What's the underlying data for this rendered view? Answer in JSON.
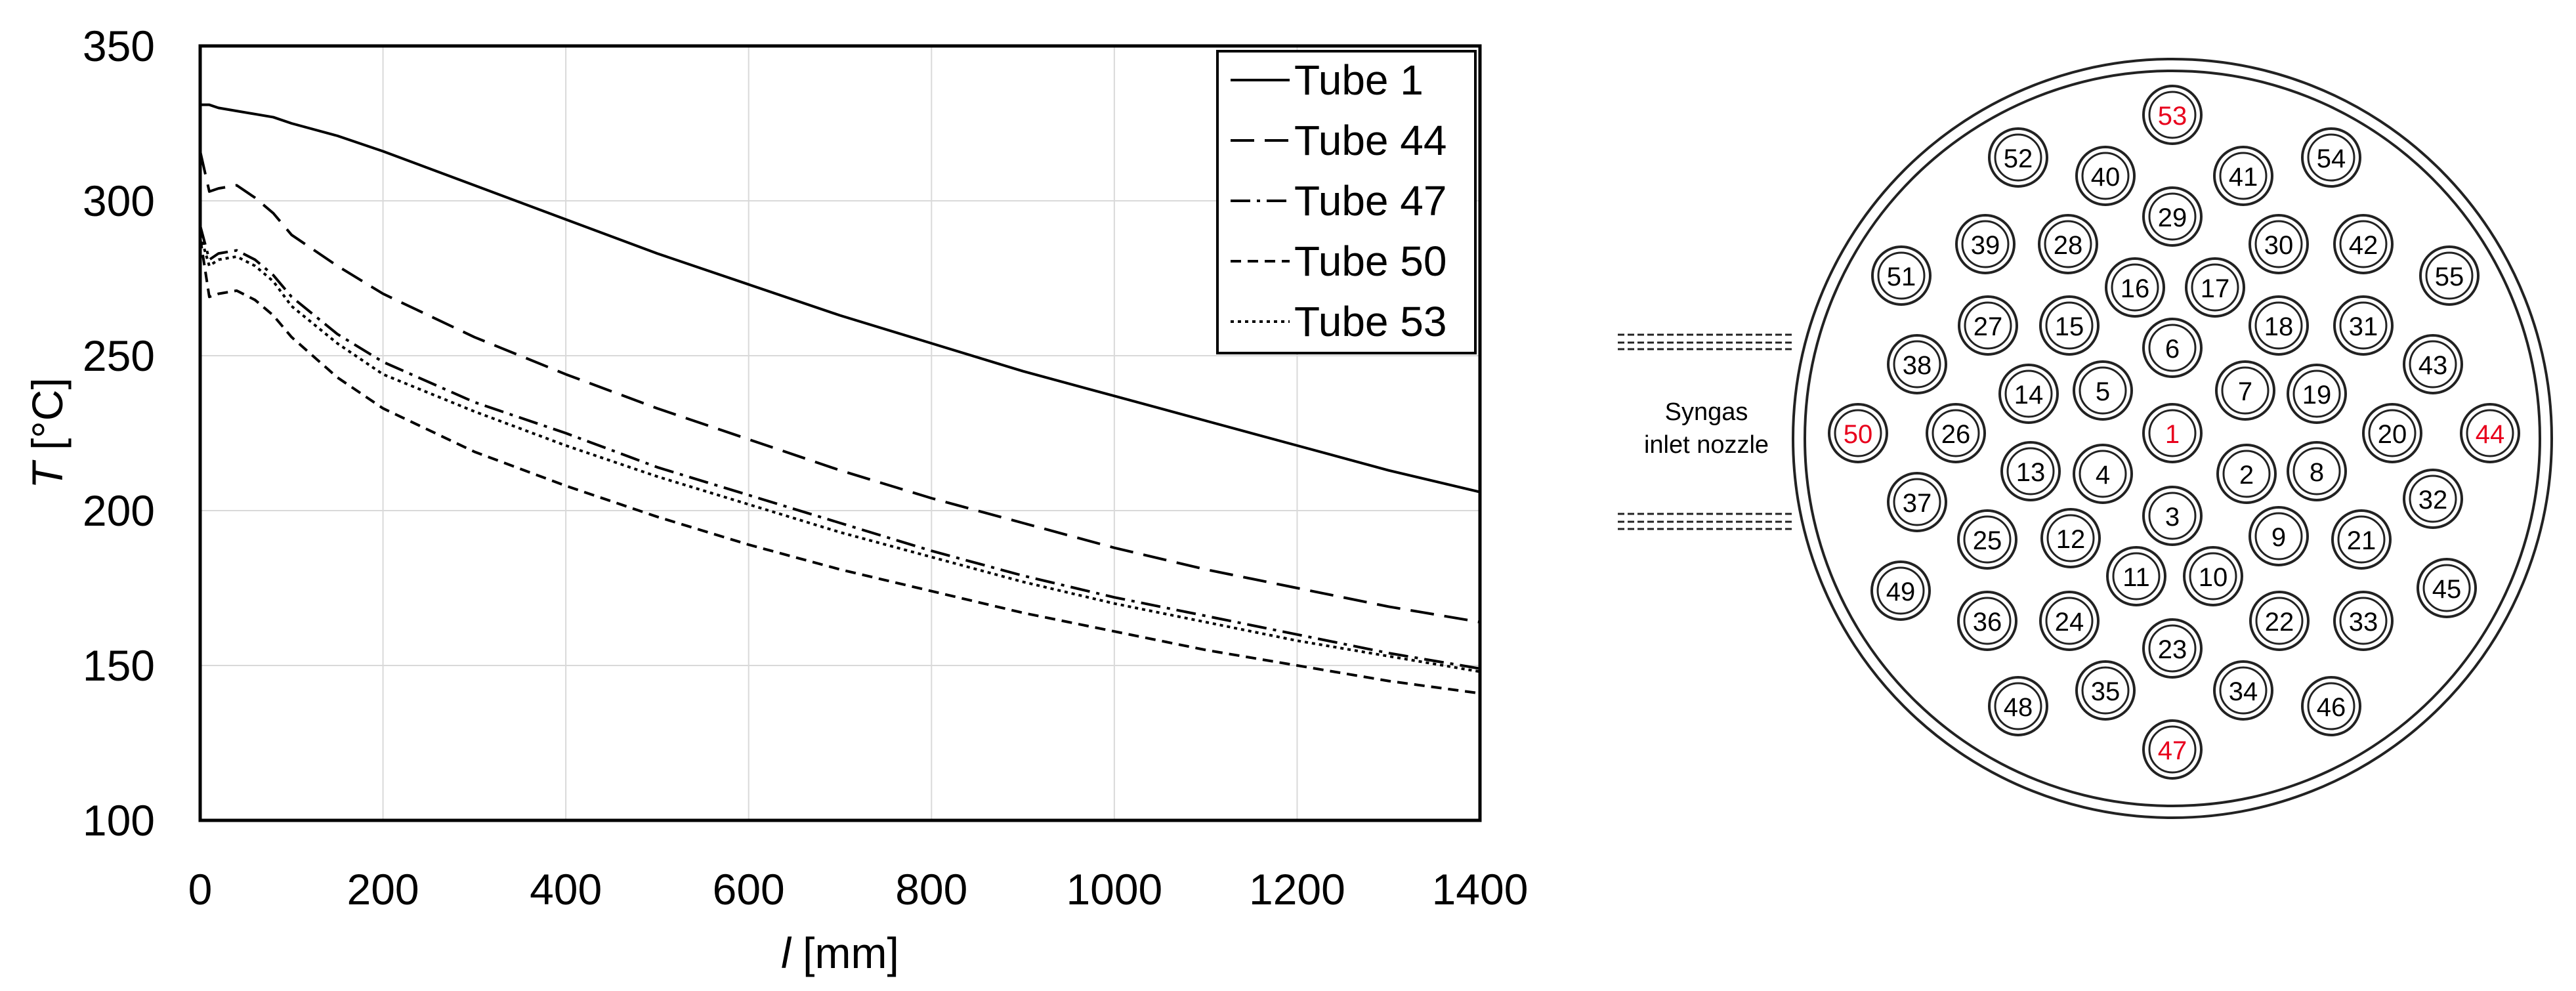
{
  "chart_data": {
    "type": "line",
    "title": "",
    "xlabel_var": "l",
    "xlabel_unit": " [mm]",
    "ylabel_var": "T",
    "ylabel_unit": " [°C]",
    "xlim": [
      0,
      1400
    ],
    "ylim": [
      100,
      350
    ],
    "xticks": [
      0,
      200,
      400,
      600,
      800,
      1000,
      1200,
      1400
    ],
    "yticks": [
      100,
      150,
      200,
      250,
      300,
      350
    ],
    "grid": true,
    "legend_position": "top-right",
    "x": [
      0,
      10,
      20,
      40,
      60,
      80,
      100,
      150,
      200,
      300,
      400,
      500,
      600,
      700,
      800,
      900,
      1000,
      1100,
      1200,
      1300,
      1400
    ],
    "series": [
      {
        "name": "Tube 1",
        "dash": "solid",
        "values": [
          331,
          331,
          330,
          329,
          328,
          327,
          325,
          321,
          316,
          305,
          294,
          283,
          273,
          263,
          254,
          245,
          237,
          229,
          221,
          213,
          206
        ]
      },
      {
        "name": "Tube 44",
        "dash": "long-dash",
        "values": [
          316,
          303,
          304,
          305,
          301,
          296,
          289,
          279,
          270,
          256,
          244,
          233,
          223,
          213,
          204,
          196,
          188,
          181,
          175,
          169,
          164
        ]
      },
      {
        "name": "Tube 47",
        "dash": "dash-dot",
        "values": [
          292,
          281,
          283,
          284,
          281,
          276,
          269,
          257,
          248,
          235,
          225,
          214,
          205,
          196,
          187,
          179,
          172,
          166,
          160,
          154,
          149
        ]
      },
      {
        "name": "Tube 50",
        "dash": "short-dash",
        "values": [
          288,
          269,
          270,
          271,
          268,
          263,
          256,
          243,
          233,
          219,
          208,
          198,
          189,
          181,
          174,
          167,
          161,
          155,
          150,
          145,
          141
        ]
      },
      {
        "name": "Tube 53",
        "dash": "dotted",
        "values": [
          289,
          279,
          281,
          282,
          279,
          274,
          266,
          254,
          244,
          232,
          221,
          211,
          202,
          193,
          185,
          177,
          170,
          164,
          158,
          153,
          148
        ]
      }
    ]
  },
  "diagram": {
    "nozzle_label_line1": "Syngas",
    "nozzle_label_line2": "inlet nozzle",
    "highlight_color": "#e8001c",
    "tubes": [
      {
        "n": "53",
        "hl": true
      },
      {
        "n": "52"
      },
      {
        "n": "40"
      },
      {
        "n": "41"
      },
      {
        "n": "54"
      },
      {
        "n": "29"
      },
      {
        "n": "39"
      },
      {
        "n": "28"
      },
      {
        "n": "30"
      },
      {
        "n": "42"
      },
      {
        "n": "51"
      },
      {
        "n": "16"
      },
      {
        "n": "17"
      },
      {
        "n": "55"
      },
      {
        "n": "27"
      },
      {
        "n": "15"
      },
      {
        "n": "18"
      },
      {
        "n": "31"
      },
      {
        "n": "6"
      },
      {
        "n": "38"
      },
      {
        "n": "43"
      },
      {
        "n": "14"
      },
      {
        "n": "5"
      },
      {
        "n": "7"
      },
      {
        "n": "19"
      },
      {
        "n": "50",
        "hl": true
      },
      {
        "n": "26"
      },
      {
        "n": "1",
        "hl": true
      },
      {
        "n": "20"
      },
      {
        "n": "44",
        "hl": true
      },
      {
        "n": "13"
      },
      {
        "n": "4"
      },
      {
        "n": "2"
      },
      {
        "n": "8"
      },
      {
        "n": "37"
      },
      {
        "n": "32"
      },
      {
        "n": "3"
      },
      {
        "n": "25"
      },
      {
        "n": "12"
      },
      {
        "n": "9"
      },
      {
        "n": "21"
      },
      {
        "n": "11"
      },
      {
        "n": "10"
      },
      {
        "n": "49"
      },
      {
        "n": "45"
      },
      {
        "n": "36"
      },
      {
        "n": "24"
      },
      {
        "n": "22"
      },
      {
        "n": "33"
      },
      {
        "n": "23"
      },
      {
        "n": "35"
      },
      {
        "n": "34"
      },
      {
        "n": "48"
      },
      {
        "n": "46"
      },
      {
        "n": "47",
        "hl": true
      }
    ]
  }
}
